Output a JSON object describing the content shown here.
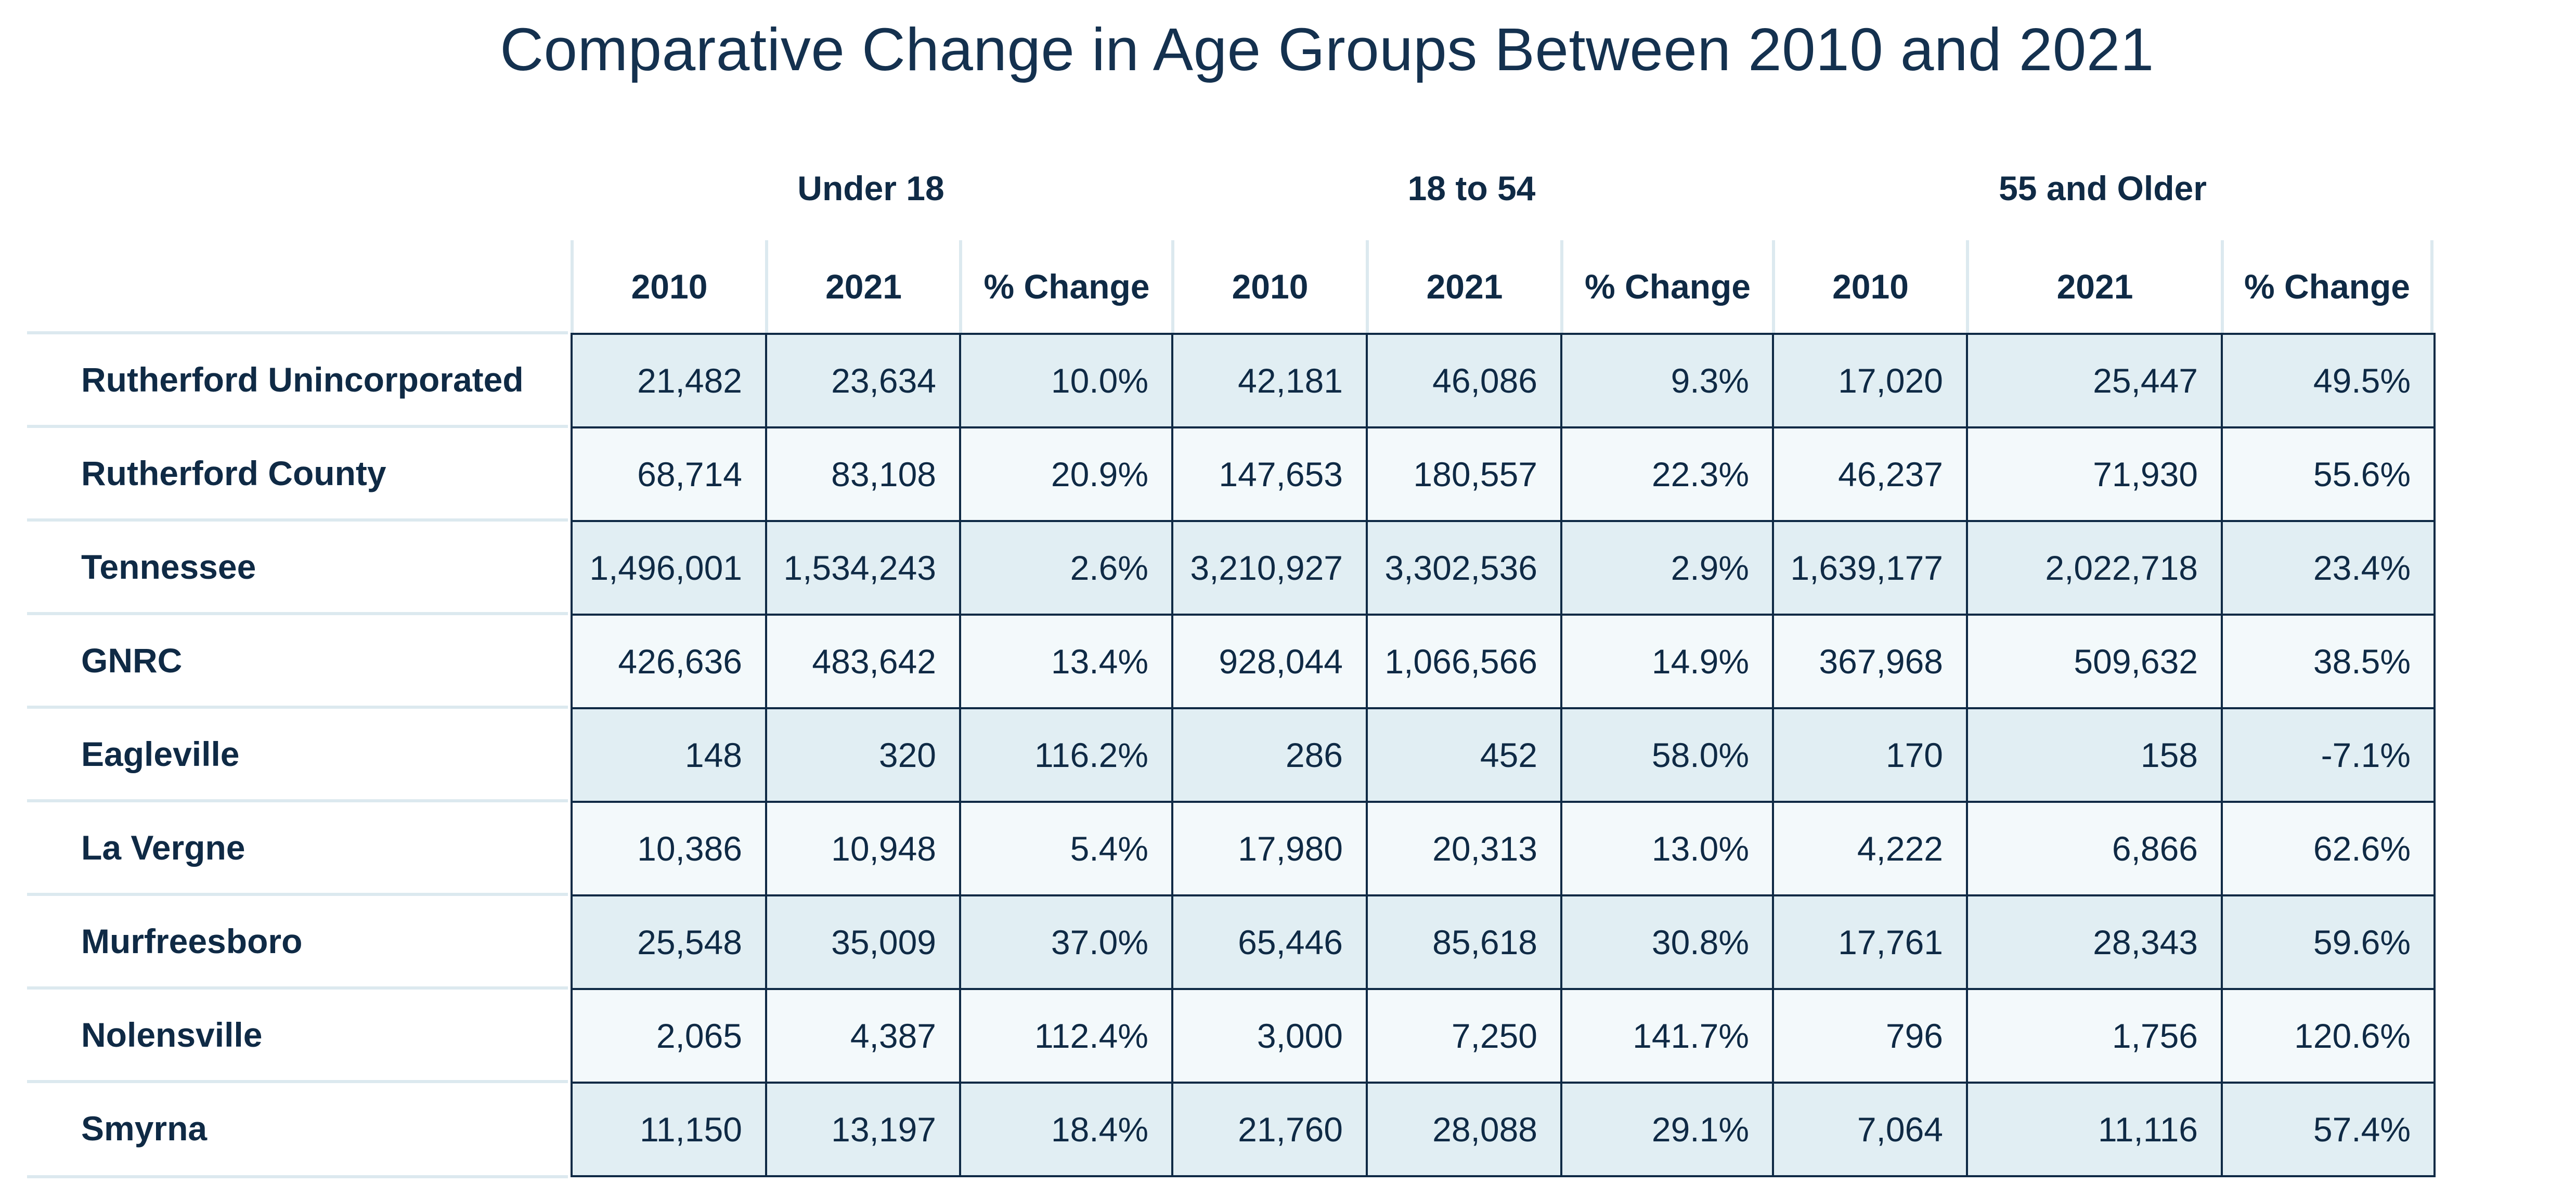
{
  "chart_data": {
    "type": "table",
    "title": "Comparative Change in Age Groups Between 2010 and 2021",
    "groups": [
      "Under 18",
      "18 to 54",
      "55 and Older"
    ],
    "columns": [
      "2010",
      "2021",
      "% Change",
      "2010",
      "2021",
      "% Change",
      "2010",
      "2021",
      "% Change"
    ],
    "rows": [
      {
        "label": "Rutherford Unincorporated",
        "values": [
          "21,482",
          "23,634",
          "10.0%",
          "42,181",
          "46,086",
          "9.3%",
          "17,020",
          "25,447",
          "49.5%"
        ]
      },
      {
        "label": "Rutherford County",
        "values": [
          "68,714",
          "83,108",
          "20.9%",
          "147,653",
          "180,557",
          "22.3%",
          "46,237",
          "71,930",
          "55.6%"
        ]
      },
      {
        "label": "Tennessee",
        "values": [
          "1,496,001",
          "1,534,243",
          "2.6%",
          "3,210,927",
          "3,302,536",
          "2.9%",
          "1,639,177",
          "2,022,718",
          "23.4%"
        ]
      },
      {
        "label": "GNRC",
        "values": [
          "426,636",
          "483,642",
          "13.4%",
          "928,044",
          "1,066,566",
          "14.9%",
          "367,968",
          "509,632",
          "38.5%"
        ]
      },
      {
        "label": "Eagleville",
        "values": [
          "148",
          "320",
          "116.2%",
          "286",
          "452",
          "58.0%",
          "170",
          "158",
          "-7.1%"
        ]
      },
      {
        "label": "La Vergne",
        "values": [
          "10,386",
          "10,948",
          "5.4%",
          "17,980",
          "20,313",
          "13.0%",
          "4,222",
          "6,866",
          "62.6%"
        ]
      },
      {
        "label": "Murfreesboro",
        "values": [
          "25,548",
          "35,009",
          "37.0%",
          "65,446",
          "85,618",
          "30.8%",
          "17,761",
          "28,343",
          "59.6%"
        ]
      },
      {
        "label": "Nolensville",
        "values": [
          "2,065",
          "4,387",
          "112.4%",
          "3,000",
          "7,250",
          "141.7%",
          "796",
          "1,756",
          "120.6%"
        ]
      },
      {
        "label": "Smyrna",
        "values": [
          "11,150",
          "13,197",
          "18.4%",
          "21,760",
          "28,088",
          "29.1%",
          "7,064",
          "11,116",
          "57.4%"
        ]
      }
    ]
  },
  "colors": {
    "text": "#0f2a45",
    "border": "#0f2a45",
    "row_dark": "#e1eef3",
    "row_light": "#f3f9fb",
    "grid_light": "#dce9ef"
  }
}
